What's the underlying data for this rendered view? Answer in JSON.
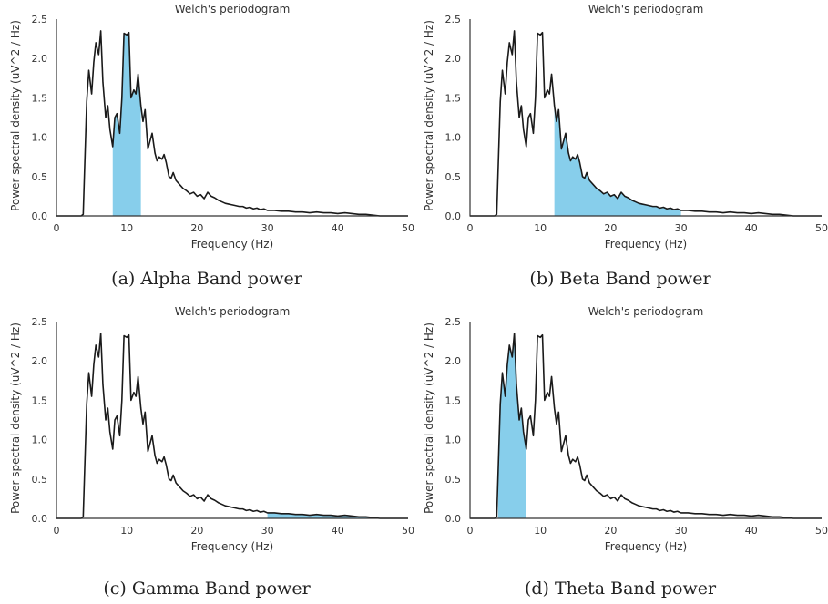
{
  "chart_data": [
    {
      "type": "area",
      "title": "Welch's periodogram",
      "xlabel": "Frequency (Hz)",
      "ylabel": "Power spectral density (uV^2 / Hz)",
      "xlim": [
        0,
        50
      ],
      "ylim": [
        0,
        2.5
      ],
      "xticks": [
        "0",
        "10",
        "20",
        "30",
        "40",
        "50"
      ],
      "yticks": [
        "0.0",
        "0.5",
        "1.0",
        "1.5",
        "2.0",
        "2.5"
      ],
      "band_hz": [
        8,
        12
      ],
      "caption": "(a) Alpha Band power"
    },
    {
      "type": "area",
      "title": "Welch's periodogram",
      "xlabel": "Frequency (Hz)",
      "ylabel": "Power spectral density (uV^2 / Hz)",
      "xlim": [
        0,
        50
      ],
      "ylim": [
        0,
        2.5
      ],
      "xticks": [
        "0",
        "10",
        "20",
        "30",
        "40",
        "50"
      ],
      "yticks": [
        "0.0",
        "0.5",
        "1.0",
        "1.5",
        "2.0",
        "2.5"
      ],
      "band_hz": [
        12,
        30
      ],
      "caption": "(b) Beta Band power"
    },
    {
      "type": "area",
      "title": "Welch's periodogram",
      "xlabel": "Frequency (Hz)",
      "ylabel": "Power spectral density (uV^2 / Hz)",
      "xlim": [
        0,
        50
      ],
      "ylim": [
        0,
        2.5
      ],
      "xticks": [
        "0",
        "10",
        "20",
        "30",
        "40",
        "50"
      ],
      "yticks": [
        "0.0",
        "0.5",
        "1.0",
        "1.5",
        "2.0",
        "2.5"
      ],
      "band_hz": [
        30,
        45
      ],
      "caption": "(c) Gamma Band power"
    },
    {
      "type": "area",
      "title": "Welch's periodogram",
      "xlabel": "Frequency (Hz)",
      "ylabel": "Power spectral density (uV^2 / Hz)",
      "xlim": [
        0,
        50
      ],
      "ylim": [
        0,
        2.5
      ],
      "xticks": [
        "0",
        "10",
        "20",
        "30",
        "40",
        "50"
      ],
      "yticks": [
        "0.0",
        "0.5",
        "1.0",
        "1.5",
        "2.0",
        "2.5"
      ],
      "band_hz": [
        4,
        8
      ],
      "caption": "(d) Theta Band power"
    }
  ],
  "psd": {
    "x": [
      0,
      1,
      2,
      3,
      3.5,
      3.8,
      4,
      4.3,
      4.6,
      5,
      5.3,
      5.6,
      6,
      6.3,
      6.6,
      7,
      7.3,
      7.6,
      8,
      8.3,
      8.6,
      9,
      9.3,
      9.6,
      10,
      10.3,
      10.6,
      11,
      11.3,
      11.6,
      12,
      12.3,
      12.6,
      13,
      13.3,
      13.6,
      14,
      14.3,
      14.6,
      15,
      15.3,
      15.6,
      16,
      16.3,
      16.6,
      17,
      17.5,
      18,
      18.5,
      19,
      19.5,
      20,
      20.5,
      21,
      21.5,
      22,
      22.5,
      23,
      23.5,
      24,
      24.5,
      25,
      25.5,
      26,
      26.5,
      27,
      27.5,
      28,
      28.5,
      29,
      29.5,
      30,
      31,
      32,
      33,
      34,
      35,
      36,
      37,
      38,
      39,
      40,
      41,
      42,
      43,
      44,
      45,
      46,
      47,
      48,
      49,
      50
    ],
    "y": [
      0,
      0,
      0,
      0,
      0,
      0.02,
      0.6,
      1.45,
      1.85,
      1.55,
      1.95,
      2.2,
      2.05,
      2.35,
      1.7,
      1.25,
      1.4,
      1.1,
      0.88,
      1.25,
      1.3,
      1.05,
      1.5,
      2.32,
      2.3,
      2.33,
      1.5,
      1.6,
      1.55,
      1.8,
      1.4,
      1.2,
      1.35,
      0.85,
      0.95,
      1.05,
      0.8,
      0.7,
      0.75,
      0.72,
      0.78,
      0.68,
      0.5,
      0.48,
      0.55,
      0.45,
      0.4,
      0.35,
      0.32,
      0.28,
      0.3,
      0.25,
      0.27,
      0.22,
      0.3,
      0.25,
      0.23,
      0.2,
      0.18,
      0.16,
      0.15,
      0.14,
      0.13,
      0.12,
      0.12,
      0.1,
      0.11,
      0.09,
      0.1,
      0.08,
      0.09,
      0.07,
      0.07,
      0.06,
      0.06,
      0.05,
      0.05,
      0.04,
      0.05,
      0.04,
      0.04,
      0.03,
      0.04,
      0.03,
      0.02,
      0.02,
      0.01,
      0,
      0,
      0,
      0,
      0
    ]
  },
  "colors": {
    "line": "#1a1a1a",
    "fill": "#87ceeb",
    "spine": "#333333"
  }
}
